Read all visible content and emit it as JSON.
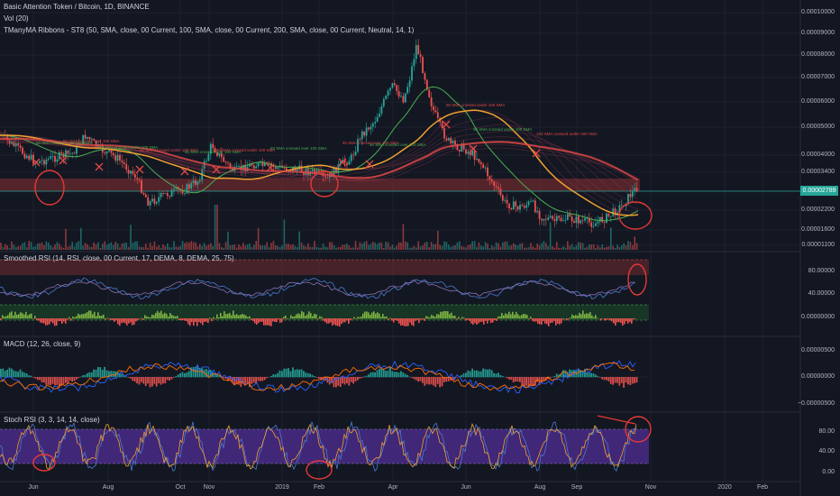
{
  "header": {
    "symbol_line": "Basic Attention Token / Bitcoin, 1D, BINANCE",
    "vol_line": "Vol (20)",
    "ribbons_line": "TManyMA Ribbons - ST8 (50, SMA, close, 00 Current, 100, SMA, close, 00 Current, 200, SMA, close, 00 Current, Neutral, 14, 1)"
  },
  "panes": {
    "rsi_title": "Smoothed RSI (14, RSI, close, 00 Current, 17, DEMA, 8, DEMA, 25, 75)",
    "macd_title": "MACD (12, 26, close, 9)",
    "stoch_title": "Stoch RSI (3, 3, 14, 14, close)"
  },
  "price_axis": [
    "0.00010000",
    "0.00009000",
    "0.00008000",
    "0.00007000",
    "0.00006000",
    "0.00005000",
    "0.00004000",
    "0.00003400",
    "0.00002200",
    "0.00001600",
    "0.00001100"
  ],
  "current_price": "0.00002789",
  "rsi_axis": [
    "80.00000",
    "40.00000",
    "0.00000000"
  ],
  "macd_axis": [
    "0.00000500",
    "0.00000000",
    "−0.00000500"
  ],
  "stoch_axis": [
    "80.00",
    "40.00",
    "0.00"
  ],
  "time_axis": [
    "Jun",
    "Aug",
    "Oct",
    "Nov",
    "2019",
    "Feb",
    "Apr",
    "Jun",
    "Aug",
    "Sep",
    "Nov",
    "2020",
    "Feb"
  ],
  "annotations": {
    "cross_labels": [
      "50 SMA crossed over 100 SMA",
      "50 SMA crossed over 100 SMA",
      "50 SMA crossed under 100 SMA",
      "50 SMA crossed under 100 SMA",
      "50 SMA crossed over 100 SMA",
      "50 SMA crossed under 100 SMA",
      "50 SMA crossed over 100 SMA",
      "50 SMA crossed over 100 SMA",
      "50 SMA crossed over 200 SMA",
      "50 SMA crossed under 100 SMA",
      "50 SMA crossed under 100 SMA",
      "100 SMA crossed under 200 SMA"
    ]
  },
  "colors": {
    "background": "#131722",
    "up": "#26a69a",
    "down": "#ef5350",
    "rsi_band": "#6b2a2f",
    "stoch_band": "#4a2a86",
    "ma_orange": "#f0a030",
    "ma_red": "#e04848",
    "ma_green": "#4caf50"
  },
  "icons": [
    "circle-annotation-icon",
    "cross-marker-icon"
  ]
}
